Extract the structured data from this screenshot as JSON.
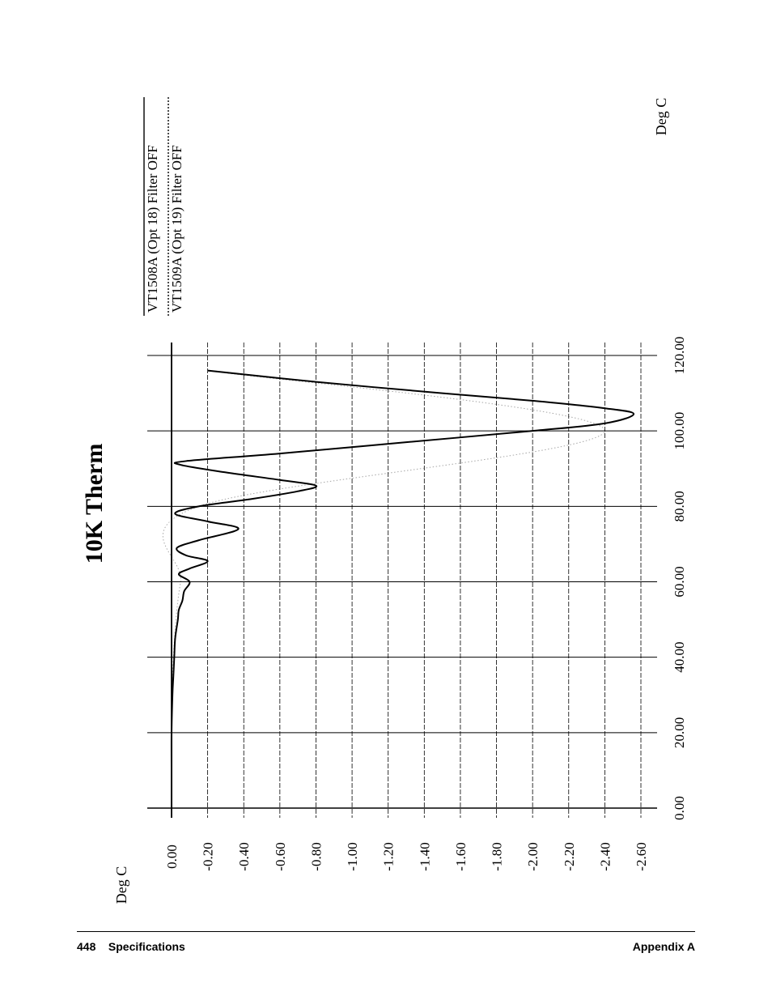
{
  "chart_data": {
    "type": "line",
    "title": "10K Therm",
    "xlabel": "Deg C",
    "ylabel": "Deg C",
    "xlim": [
      0,
      120
    ],
    "ylim": [
      -2.6,
      0
    ],
    "x_ticks": [
      "0.00",
      "20.00",
      "40.00",
      "60.00",
      "80.00",
      "100.00",
      "120.00"
    ],
    "y_ticks": [
      "0.00",
      "-0.20",
      "-0.40",
      "-0.60",
      "-0.80",
      "-1.00",
      "-1.20",
      "-1.40",
      "-1.60",
      "-1.80",
      "-2.00",
      "-2.20",
      "-2.40",
      "-2.60"
    ],
    "legend_position": "top-right",
    "series": [
      {
        "name": "VT1508A (Opt 18) Filter OFF",
        "style": "solid",
        "x": [
          0,
          10,
          20,
          30,
          35,
          40,
          45,
          50,
          52.5,
          55,
          57.5,
          60,
          62,
          63.5,
          65.5,
          67,
          69,
          71,
          74,
          76,
          78,
          80,
          82,
          84,
          85.5,
          87,
          89,
          91,
          92,
          94,
          97,
          100,
          102,
          104.5,
          106,
          108,
          110,
          113,
          116
        ],
        "y": [
          0,
          0,
          0,
          -0.005,
          -0.01,
          -0.015,
          -0.02,
          -0.035,
          -0.04,
          -0.06,
          -0.07,
          -0.1,
          -0.04,
          -0.1,
          -0.2,
          -0.08,
          -0.03,
          -0.15,
          -0.37,
          -0.2,
          -0.02,
          -0.15,
          -0.45,
          -0.7,
          -0.8,
          -0.6,
          -0.3,
          -0.05,
          -0.08,
          -0.6,
          -1.3,
          -2.0,
          -2.4,
          -2.56,
          -2.4,
          -2.0,
          -1.5,
          -0.8,
          -0.2
        ]
      },
      {
        "name": "VT1509A (Opt 19) Filter OFF",
        "style": "dotted",
        "x": [
          0,
          20,
          40,
          60,
          80,
          100,
          116
        ],
        "y": [
          0,
          0,
          -0.01,
          -0.05,
          -0.15,
          -2.4,
          -0.2
        ]
      }
    ]
  },
  "footer": {
    "left": "448    Specifications",
    "right": "Appendix A"
  }
}
